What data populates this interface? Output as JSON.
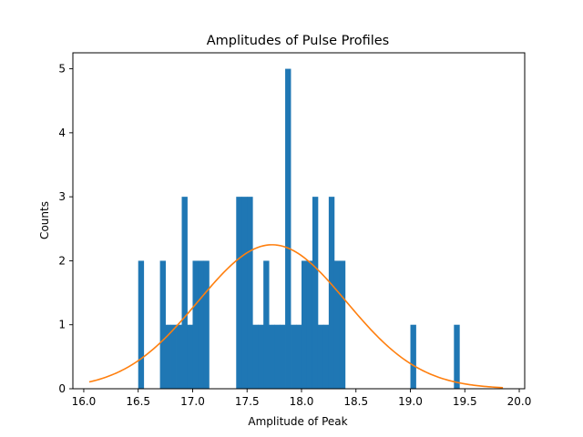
{
  "chart_data": {
    "type": "bar",
    "title": "Amplitudes of Pulse Profiles",
    "xlabel": "Amplitude of Peak",
    "ylabel": "Counts",
    "xlim": [
      15.9,
      20.05
    ],
    "ylim": [
      0,
      5.25
    ],
    "xticks": [
      16.0,
      16.5,
      17.0,
      17.5,
      18.0,
      18.5,
      19.0,
      19.5,
      20.0
    ],
    "xtick_labels": [
      "16.0",
      "16.5",
      "17.0",
      "17.5",
      "18.0",
      "18.5",
      "19.0",
      "19.5",
      "20.0"
    ],
    "yticks": [
      0,
      1,
      2,
      3,
      4,
      5
    ],
    "ytick_labels": [
      "0",
      "1",
      "2",
      "3",
      "4",
      "5"
    ],
    "grid": false,
    "legend": "none",
    "histogram": {
      "bin_width": 0.05,
      "bars": [
        {
          "x0": 16.5,
          "x1": 16.55,
          "count": 2
        },
        {
          "x0": 16.7,
          "x1": 16.75,
          "count": 2
        },
        {
          "x0": 16.75,
          "x1": 16.8,
          "count": 1
        },
        {
          "x0": 16.8,
          "x1": 16.85,
          "count": 1
        },
        {
          "x0": 16.85,
          "x1": 16.9,
          "count": 1
        },
        {
          "x0": 16.9,
          "x1": 16.95,
          "count": 3
        },
        {
          "x0": 16.95,
          "x1": 17.0,
          "count": 1
        },
        {
          "x0": 17.0,
          "x1": 17.05,
          "count": 2
        },
        {
          "x0": 17.05,
          "x1": 17.1,
          "count": 2
        },
        {
          "x0": 17.1,
          "x1": 17.15,
          "count": 2
        },
        {
          "x0": 17.4,
          "x1": 17.45,
          "count": 3
        },
        {
          "x0": 17.45,
          "x1": 17.5,
          "count": 3
        },
        {
          "x0": 17.5,
          "x1": 17.55,
          "count": 3
        },
        {
          "x0": 17.55,
          "x1": 17.6,
          "count": 1
        },
        {
          "x0": 17.6,
          "x1": 17.65,
          "count": 1
        },
        {
          "x0": 17.65,
          "x1": 17.7,
          "count": 2
        },
        {
          "x0": 17.7,
          "x1": 17.75,
          "count": 1
        },
        {
          "x0": 17.75,
          "x1": 17.8,
          "count": 1
        },
        {
          "x0": 17.8,
          "x1": 17.85,
          "count": 1
        },
        {
          "x0": 17.85,
          "x1": 17.9,
          "count": 5
        },
        {
          "x0": 17.9,
          "x1": 17.95,
          "count": 1
        },
        {
          "x0": 17.95,
          "x1": 18.0,
          "count": 1
        },
        {
          "x0": 18.0,
          "x1": 18.05,
          "count": 2
        },
        {
          "x0": 18.05,
          "x1": 18.1,
          "count": 2
        },
        {
          "x0": 18.1,
          "x1": 18.15,
          "count": 3
        },
        {
          "x0": 18.15,
          "x1": 18.2,
          "count": 1
        },
        {
          "x0": 18.2,
          "x1": 18.25,
          "count": 1
        },
        {
          "x0": 18.25,
          "x1": 18.3,
          "count": 3
        },
        {
          "x0": 18.3,
          "x1": 18.35,
          "count": 2
        },
        {
          "x0": 18.35,
          "x1": 18.4,
          "count": 2
        },
        {
          "x0": 19.0,
          "x1": 19.05,
          "count": 1
        },
        {
          "x0": 19.4,
          "x1": 19.45,
          "count": 1
        }
      ]
    },
    "fit_curve": {
      "type": "gaussian",
      "amplitude": 2.25,
      "mean": 17.73,
      "sigma": 0.68,
      "x_range": [
        16.05,
        19.85
      ]
    },
    "colors": {
      "bars": "#1f77b4",
      "curve": "#ff7f0e",
      "axes": "#000000"
    }
  }
}
